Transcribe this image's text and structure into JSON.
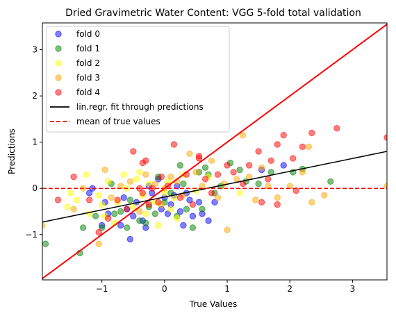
{
  "chart_data": {
    "type": "scatter",
    "title": "Dried Gravimetric Water Content: VGG 5-fold total validation",
    "xlabel": "True Values",
    "ylabel": "Predictions",
    "xlim": [
      -1.95,
      3.55
    ],
    "ylim": [
      -1.98,
      3.58
    ],
    "xticks": [
      -1,
      0,
      1,
      2,
      3
    ],
    "xtick_labels": [
      "−1",
      "0",
      "1",
      "2",
      "3"
    ],
    "yticks": [
      -1,
      0,
      1,
      2,
      3
    ],
    "ytick_labels": [
      "−1",
      "0",
      "1",
      "2",
      "3"
    ],
    "grid": false,
    "legend_position": "top-left",
    "series": [
      {
        "name": "fold 0",
        "color": "#0000ff",
        "points": [
          [
            -1.2,
            -0.1
          ],
          [
            -1.15,
            0.0
          ],
          [
            -0.95,
            -0.3
          ],
          [
            -0.9,
            -0.55
          ],
          [
            -0.7,
            -0.8
          ],
          [
            -0.55,
            -1.1
          ],
          [
            -0.5,
            -0.6
          ],
          [
            -0.45,
            -0.3
          ],
          [
            -0.35,
            -0.7
          ],
          [
            -0.3,
            -0.85
          ],
          [
            -0.2,
            -0.1
          ],
          [
            -0.1,
            0.2
          ],
          [
            -0.05,
            -0.45
          ],
          [
            0.0,
            -0.2
          ],
          [
            0.05,
            -0.55
          ],
          [
            0.1,
            -0.35
          ],
          [
            0.2,
            0.05
          ],
          [
            0.25,
            -0.5
          ],
          [
            0.35,
            -0.1
          ],
          [
            0.4,
            -0.25
          ],
          [
            0.45,
            -0.6
          ],
          [
            0.55,
            -0.3
          ],
          [
            0.6,
            -0.55
          ],
          [
            0.7,
            -0.7
          ],
          [
            0.8,
            -0.3
          ],
          [
            -0.6,
            -0.45
          ],
          [
            -0.25,
            0.05
          ],
          [
            0.15,
            -0.15
          ],
          [
            1.9,
            0.5
          ],
          [
            1.55,
            0.4
          ],
          [
            -1.0,
            -0.8
          ],
          [
            -0.65,
            -0.2
          ],
          [
            0.3,
            -0.8
          ]
        ]
      },
      {
        "name": "fold 1",
        "color": "#008000",
        "points": [
          [
            -1.9,
            -1.2
          ],
          [
            -1.35,
            -1.4
          ],
          [
            -1.3,
            -0.85
          ],
          [
            -1.1,
            -0.6
          ],
          [
            -1.0,
            -0.85
          ],
          [
            -0.85,
            0.1
          ],
          [
            -0.7,
            -0.5
          ],
          [
            -0.6,
            -0.85
          ],
          [
            -0.55,
            -0.25
          ],
          [
            -0.4,
            -0.7
          ],
          [
            -0.25,
            -0.4
          ],
          [
            -0.15,
            -0.55
          ],
          [
            -0.1,
            0.25
          ],
          [
            0.0,
            -0.3
          ],
          [
            0.1,
            -0.1
          ],
          [
            0.2,
            -0.6
          ],
          [
            0.25,
            0.5
          ],
          [
            0.3,
            0.1
          ],
          [
            0.35,
            -0.45
          ],
          [
            0.45,
            -0.85
          ],
          [
            0.55,
            0.35
          ],
          [
            0.6,
            -0.45
          ],
          [
            0.7,
            0.3
          ],
          [
            0.8,
            -0.1
          ],
          [
            0.9,
            0.05
          ],
          [
            1.05,
            0.55
          ],
          [
            1.2,
            0.4
          ],
          [
            1.3,
            0.15
          ],
          [
            1.5,
            0.1
          ],
          [
            1.7,
            0.35
          ],
          [
            2.05,
            0.35
          ],
          [
            2.2,
            0.42
          ],
          [
            2.65,
            0.15
          ],
          [
            -0.8,
            -0.55
          ],
          [
            0.65,
            0.45
          ],
          [
            -0.3,
            -0.75
          ]
        ]
      },
      {
        "name": "fold 2",
        "color": "#ffff00",
        "points": [
          [
            -1.55,
            -0.4
          ],
          [
            -1.5,
            -0.1
          ],
          [
            -1.4,
            -0.25
          ],
          [
            -1.25,
            0.3
          ],
          [
            -1.2,
            -0.55
          ],
          [
            -1.05,
            -0.15
          ],
          [
            -1.0,
            -0.35
          ],
          [
            -0.95,
            -0.6
          ],
          [
            -0.9,
            0.15
          ],
          [
            -0.8,
            -0.75
          ],
          [
            -0.75,
            -0.3
          ],
          [
            -0.6,
            0.0
          ],
          [
            -0.5,
            -0.4
          ],
          [
            -0.45,
            0.2
          ],
          [
            -0.35,
            -0.15
          ],
          [
            -0.3,
            -0.55
          ],
          [
            -0.25,
            0.1
          ],
          [
            -0.15,
            -0.3
          ],
          [
            -0.1,
            -0.8
          ],
          [
            0.0,
            -0.1
          ],
          [
            0.05,
            0.15
          ],
          [
            0.1,
            -0.45
          ],
          [
            0.15,
            -0.2
          ],
          [
            0.3,
            0.3
          ],
          [
            0.5,
            -0.05
          ],
          [
            0.7,
            0.25
          ],
          [
            1.2,
            -0.1
          ],
          [
            -0.4,
            0.35
          ],
          [
            -0.65,
            0.3
          ],
          [
            0.2,
            -0.65
          ]
        ]
      },
      {
        "name": "fold 3",
        "color": "#ffa500",
        "points": [
          [
            -1.95,
            -0.8
          ],
          [
            -1.45,
            -0.45
          ],
          [
            -1.3,
            0.0
          ],
          [
            -1.05,
            -1.2
          ],
          [
            -0.95,
            0.4
          ],
          [
            -0.85,
            -0.2
          ],
          [
            -0.7,
            0.05
          ],
          [
            -0.55,
            0.15
          ],
          [
            -0.4,
            -0.5
          ],
          [
            -0.3,
            0.3
          ],
          [
            -0.15,
            0.1
          ],
          [
            -0.05,
            -0.35
          ],
          [
            0.0,
            0.0
          ],
          [
            0.1,
            0.25
          ],
          [
            0.2,
            0.15
          ],
          [
            0.3,
            -0.15
          ],
          [
            0.4,
            0.75
          ],
          [
            0.5,
            0.35
          ],
          [
            0.6,
            0.05
          ],
          [
            0.75,
            0.6
          ],
          [
            0.85,
            -0.2
          ],
          [
            0.95,
            0.1
          ],
          [
            1.0,
            -0.9
          ],
          [
            1.15,
            0.2
          ],
          [
            1.25,
            1.15
          ],
          [
            1.35,
            0.25
          ],
          [
            1.45,
            -0.25
          ],
          [
            1.55,
            0.45
          ],
          [
            1.65,
            0.05
          ],
          [
            1.8,
            -0.2
          ],
          [
            2.0,
            0.05
          ],
          [
            2.2,
            0.35
          ],
          [
            2.3,
            0.9
          ],
          [
            2.35,
            -0.3
          ],
          [
            2.55,
            -0.15
          ],
          [
            3.55,
            0.05
          ]
        ]
      },
      {
        "name": "fold 4",
        "color": "#ff0000",
        "points": [
          [
            -1.7,
            -0.25
          ],
          [
            -1.45,
            0.25
          ],
          [
            -1.2,
            -0.25
          ],
          [
            -1.05,
            -0.95
          ],
          [
            -0.9,
            -0.65
          ],
          [
            -0.75,
            -0.25
          ],
          [
            -0.6,
            -0.45
          ],
          [
            -0.5,
            0.8
          ],
          [
            -0.4,
            0.0
          ],
          [
            -0.35,
            0.55
          ],
          [
            -0.3,
            0.6
          ],
          [
            -0.25,
            -0.35
          ],
          [
            -0.2,
            0.0
          ],
          [
            -0.1,
            -0.3
          ],
          [
            -0.05,
            0.25
          ],
          [
            0.05,
            0.05
          ],
          [
            0.15,
            0.95
          ],
          [
            0.25,
            -0.2
          ],
          [
            0.35,
            0.3
          ],
          [
            0.45,
            -0.35
          ],
          [
            0.55,
            0.7
          ],
          [
            0.65,
            0.2
          ],
          [
            0.75,
            -0.1
          ],
          [
            0.85,
            0.3
          ],
          [
            1.0,
            0.5
          ],
          [
            1.1,
            0.35
          ],
          [
            1.25,
            0.1
          ],
          [
            1.35,
            0.5
          ],
          [
            1.5,
            0.8
          ],
          [
            1.55,
            -0.3
          ],
          [
            1.7,
            0.6
          ],
          [
            1.8,
            -0.35
          ],
          [
            1.8,
            0.95
          ],
          [
            1.9,
            1.15
          ],
          [
            2.05,
            0.65
          ],
          [
            2.1,
            -0.05
          ],
          [
            2.2,
            0.9
          ],
          [
            2.35,
            1.2
          ],
          [
            2.75,
            1.3
          ],
          [
            3.55,
            1.1
          ],
          [
            1.65,
            0.2
          ],
          [
            -0.35,
            -0.1
          ],
          [
            0.55,
            0.65
          ]
        ]
      }
    ],
    "fit_line": {
      "name": "lin.regr. fit through predictions",
      "color": "#000000",
      "x": [
        -1.95,
        3.55
      ],
      "y": [
        -0.73,
        0.8
      ]
    },
    "mean_line": {
      "name": "mean of true values",
      "color": "#ff0000",
      "y": 0
    },
    "identity_line": {
      "color": "#ff0000"
    }
  }
}
